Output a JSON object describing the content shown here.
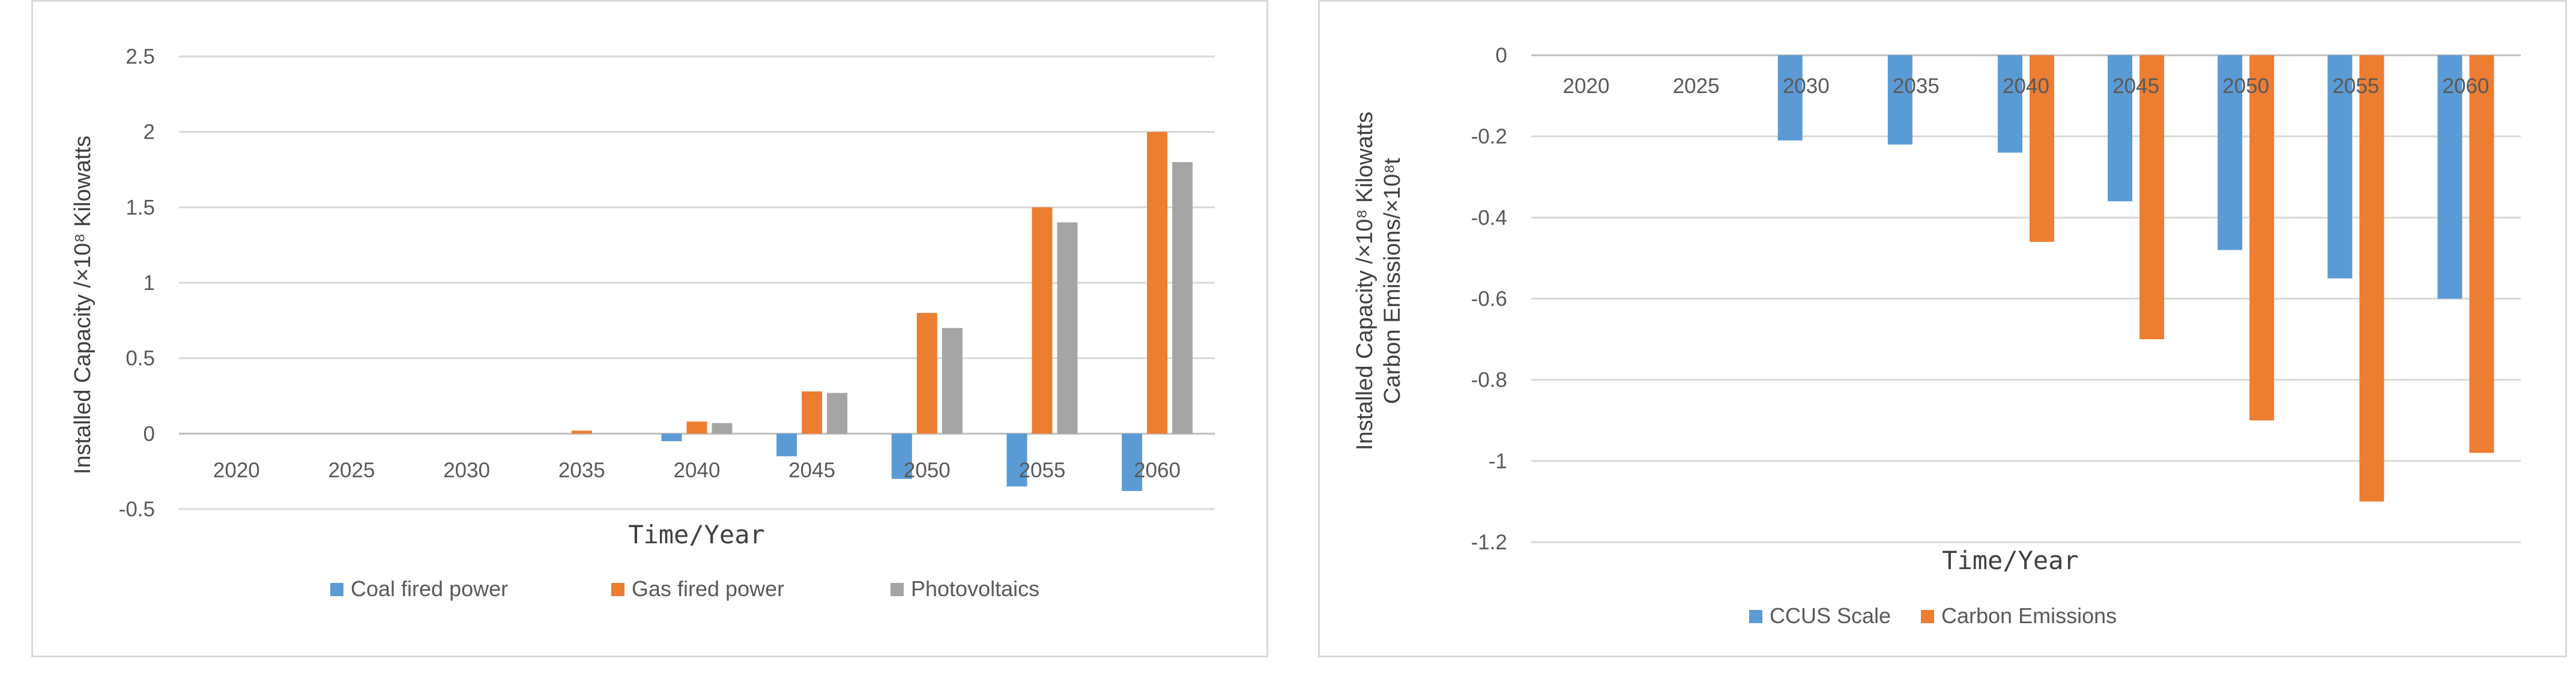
{
  "chart_data": [
    {
      "type": "bar",
      "title": "",
      "categories": [
        "2020",
        "2025",
        "2030",
        "2035",
        "2040",
        "2045",
        "2050",
        "2055",
        "2060"
      ],
      "series": [
        {
          "name": "Coal fired power",
          "color": "#5b9bd5",
          "values": [
            0,
            0,
            0,
            0,
            -0.05,
            -0.15,
            -0.3,
            -0.35,
            -0.38
          ]
        },
        {
          "name": "Gas fired power",
          "color": "#ed7d31",
          "values": [
            0,
            0,
            0,
            0.02,
            0.08,
            0.28,
            0.8,
            1.5,
            2.0
          ]
        },
        {
          "name": "Photovoltaics",
          "color": "#a5a5a5",
          "values": [
            0,
            0,
            0,
            0,
            0.07,
            0.27,
            0.7,
            1.4,
            1.8
          ]
        }
      ],
      "ylim": [
        -0.5,
        2.5
      ],
      "yticks": [
        "2.5",
        "2",
        "1.5",
        "1",
        "0.5",
        "0",
        "-0.5"
      ],
      "xlabel": "Time/Year",
      "ylabel": "Installed Capacity /×10⁸ Kilowatts",
      "legend": "bottom",
      "grid": true
    },
    {
      "type": "bar",
      "title": "",
      "categories": [
        "2020",
        "2025",
        "2030",
        "2035",
        "2040",
        "2045",
        "2050",
        "2055",
        "2060"
      ],
      "series": [
        {
          "name": "CCUS Scale",
          "color": "#5b9bd5",
          "values": [
            0,
            0,
            -0.21,
            -0.22,
            -0.24,
            -0.36,
            -0.48,
            -0.55,
            -0.6
          ]
        },
        {
          "name": "Carbon Emissions",
          "color": "#ed7d31",
          "values": [
            0,
            0,
            0,
            0,
            -0.46,
            -0.7,
            -0.9,
            -1.1,
            -0.98
          ]
        }
      ],
      "ylim": [
        -1.2,
        0
      ],
      "yticks": [
        "0",
        "-0.2",
        "-0.4",
        "-0.6",
        "-0.8",
        "-1",
        "-1.2"
      ],
      "xlabel": "Time/Year",
      "ylabel": "Installed Capacity /×10⁸ Kilowatts",
      "ylabel2": "Carbon Emissions/×10⁸t",
      "legend": "bottom",
      "grid": true
    }
  ]
}
